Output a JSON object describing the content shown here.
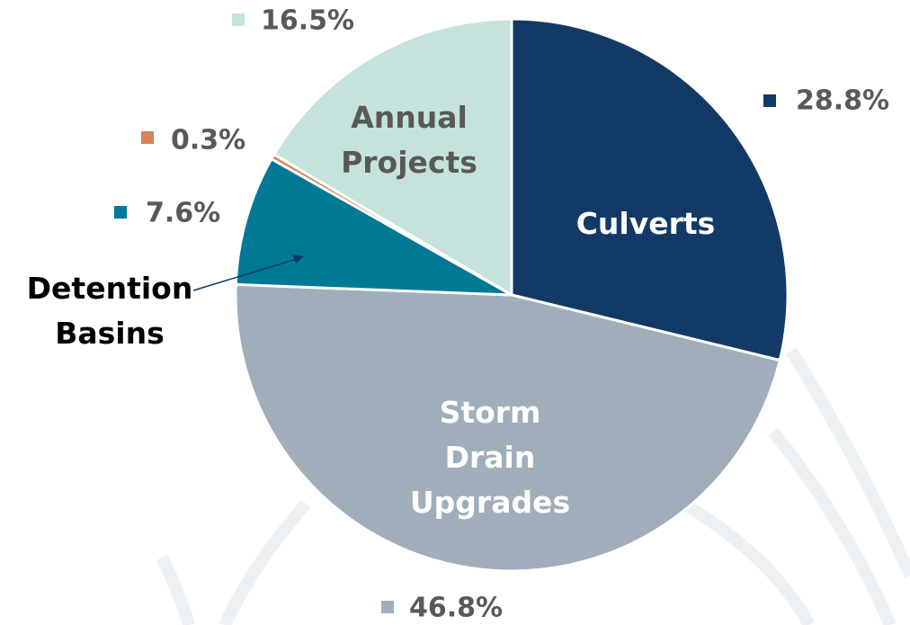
{
  "chart_data": {
    "type": "pie",
    "categories": [
      "Culverts",
      "Storm Drain Upgrades",
      "Detention Basins",
      null,
      "Annual Projects"
    ],
    "values": [
      28.8,
      46.8,
      7.6,
      0.3,
      16.5
    ],
    "value_labels": [
      "28.8%",
      "46.8%",
      "7.6%",
      "0.3%",
      "16.5%"
    ],
    "colors": [
      "#133a66",
      "#a0aebb",
      "#007a94",
      "#d9825b",
      "#c5e3dc"
    ]
  }
}
